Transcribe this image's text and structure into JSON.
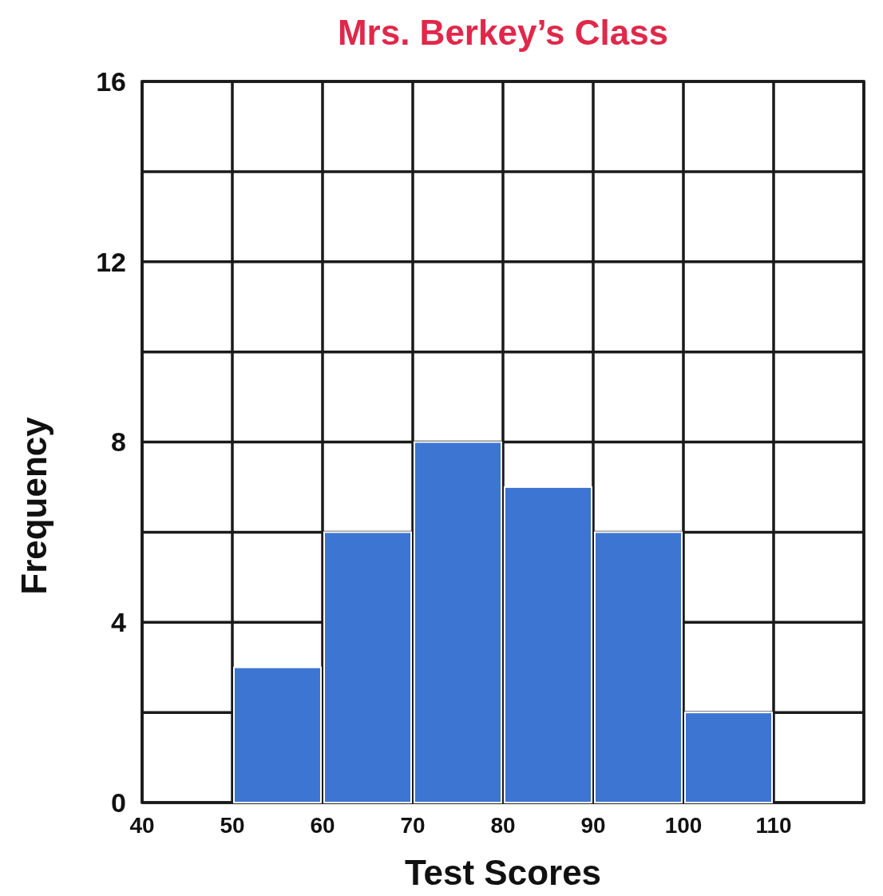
{
  "chart_data": {
    "type": "histogram",
    "title": "Mrs. Berkey’s Class",
    "xlabel": "Test Scores",
    "ylabel": "Frequency",
    "bins": [
      50,
      60,
      70,
      80,
      90,
      100,
      110
    ],
    "values": [
      3,
      6,
      8,
      7,
      6,
      2
    ],
    "color": "#3d75d3",
    "xlim": [
      40,
      120
    ],
    "xticks": [
      40,
      50,
      60,
      70,
      80,
      90,
      100,
      110,
      {
        "value": 120,
        "label": null
      }
    ],
    "ylim": [
      0,
      16
    ],
    "yticks": [
      0,
      {
        "value": 2,
        "label": null
      },
      4,
      {
        "value": 6,
        "label": null
      },
      8,
      {
        "value": 10,
        "label": null
      },
      12,
      {
        "value": 14,
        "label": null
      },
      16
    ],
    "grid": true
  }
}
